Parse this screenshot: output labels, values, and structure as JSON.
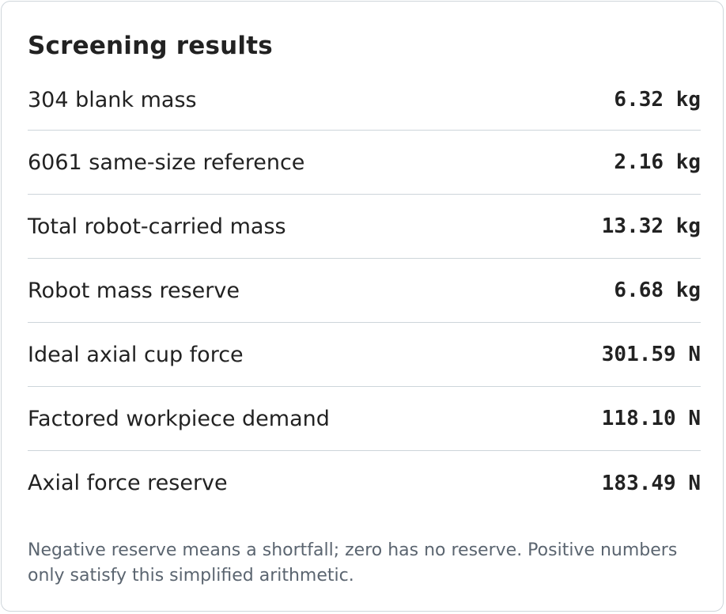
{
  "title": "Screening results",
  "rows": [
    {
      "label": "304 blank mass",
      "value": "6.32 kg"
    },
    {
      "label": "6061 same-size reference",
      "value": "2.16 kg"
    },
    {
      "label": "Total robot-carried mass",
      "value": "13.32 kg"
    },
    {
      "label": "Robot mass reserve",
      "value": "6.68 kg"
    },
    {
      "label": "Ideal axial cup force",
      "value": "301.59 N"
    },
    {
      "label": "Factored workpiece demand",
      "value": "118.10 N"
    },
    {
      "label": "Axial force reserve",
      "value": "183.49 N"
    }
  ],
  "note": "Negative reserve means a shortfall; zero has no reserve. Positive numbers only satisfy this simplified arithmetic."
}
